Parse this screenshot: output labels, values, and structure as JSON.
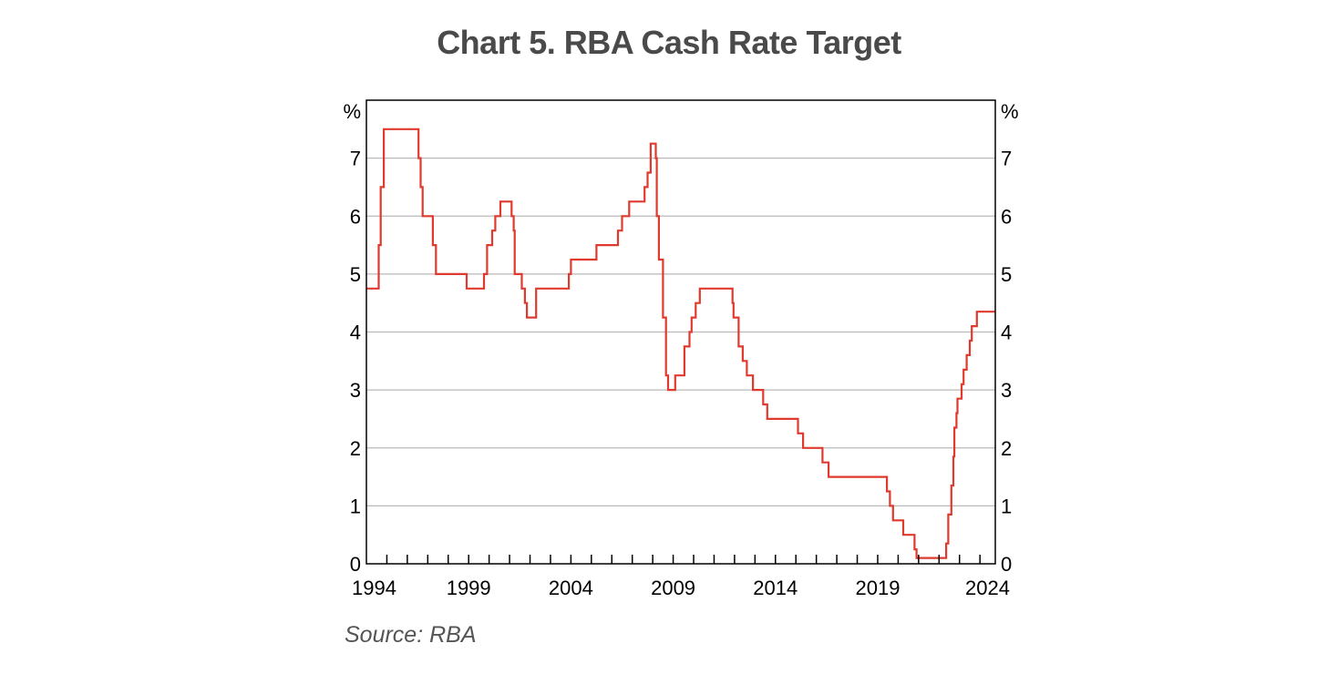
{
  "title": "Chart 5. RBA Cash Rate Target",
  "source": "Source: RBA",
  "chart_data": {
    "type": "line",
    "title": "Chart 5. RBA Cash Rate Target",
    "y_unit_left": "%",
    "y_unit_right": "%",
    "xlim": [
      1994,
      2024.75
    ],
    "ylim": [
      0,
      8
    ],
    "yticks": [
      0,
      1,
      2,
      3,
      4,
      5,
      6,
      7
    ],
    "xtick_labels": [
      "1994",
      "1999",
      "2004",
      "2009",
      "2014",
      "2019",
      "2024"
    ],
    "xtick_label_years": [
      1994,
      1999,
      2004,
      2009,
      2014,
      2019,
      2024
    ],
    "grid": true,
    "line_color": "#e03a2e",
    "series": [
      {
        "step": true,
        "x": [
          1994.0,
          1994.6,
          1994.7,
          1994.85,
          1995.0,
          1996.55,
          1996.65,
          1996.75,
          1997.25,
          1997.4,
          1997.6,
          1998.5,
          1998.9,
          1999.75,
          1999.9,
          2000.15,
          2000.3,
          2000.55,
          2000.7,
          2001.1,
          2001.2,
          2001.25,
          2001.6,
          2001.75,
          2001.85,
          2002.3,
          2002.45,
          2003.9,
          2004.0,
          2005.25,
          2006.3,
          2006.5,
          2006.85,
          2007.6,
          2007.75,
          2007.9,
          2008.15,
          2008.2,
          2008.3,
          2008.5,
          2008.65,
          2008.75,
          2008.85,
          2009.1,
          2009.55,
          2009.8,
          2009.9,
          2010.1,
          2010.3,
          2010.7,
          2011.9,
          2011.95,
          2012.2,
          2012.4,
          2012.5,
          2012.6,
          2012.9,
          2013.4,
          2013.6,
          2015.1,
          2015.35,
          2016.3,
          2016.6,
          2019.45,
          2019.6,
          2019.75,
          2020.25,
          2020.8,
          2020.9,
          2022.35,
          2022.45,
          2022.6,
          2022.7,
          2022.75,
          2022.85,
          2022.9,
          2023.1,
          2023.2,
          2023.35,
          2023.5,
          2023.6,
          2023.85,
          2024.75
        ],
        "y": [
          4.75,
          5.5,
          6.5,
          7.5,
          7.5,
          7.0,
          6.5,
          6.0,
          5.5,
          5.0,
          5.0,
          5.0,
          4.75,
          5.0,
          5.5,
          5.75,
          6.0,
          6.25,
          6.25,
          6.0,
          5.75,
          5.0,
          4.75,
          4.5,
          4.25,
          4.75,
          4.75,
          5.0,
          5.25,
          5.5,
          5.75,
          6.0,
          6.25,
          6.5,
          6.75,
          7.25,
          7.0,
          6.0,
          5.25,
          4.25,
          3.25,
          3.0,
          3.0,
          3.25,
          3.75,
          4.0,
          4.25,
          4.5,
          4.75,
          4.75,
          4.5,
          4.25,
          3.75,
          3.5,
          3.5,
          3.25,
          3.0,
          2.75,
          2.5,
          2.25,
          2.0,
          1.75,
          1.5,
          1.25,
          1.0,
          0.75,
          0.5,
          0.25,
          0.1,
          0.35,
          0.85,
          1.35,
          1.85,
          2.35,
          2.6,
          2.85,
          3.1,
          3.35,
          3.6,
          3.85,
          4.1,
          4.35,
          4.35
        ]
      }
    ]
  }
}
